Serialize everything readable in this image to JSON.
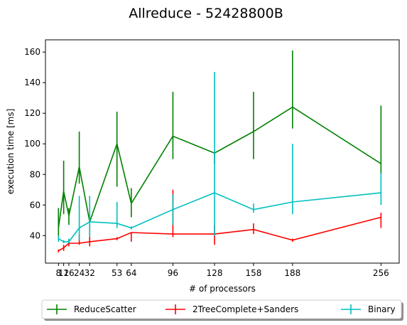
{
  "chart_data": {
    "type": "line",
    "title": "Allreduce - 52428800B",
    "xlabel": "# of processors",
    "ylabel": "execution time [ms]",
    "xticks": [
      8,
      12,
      16,
      24,
      32,
      53,
      64,
      96,
      128,
      158,
      188,
      256
    ],
    "xtick_labels": [
      "8",
      "12",
      "16",
      "24",
      "32",
      "53",
      "64",
      "96",
      "128",
      "158",
      "188",
      "256"
    ],
    "yticks": [
      40,
      60,
      80,
      100,
      120,
      140,
      160
    ],
    "ytick_labels": [
      "40",
      "60",
      "80",
      "100",
      "120",
      "140",
      "160"
    ],
    "xlim": [
      -2,
      270
    ],
    "ylim": [
      22,
      168
    ],
    "grid": false,
    "legend_position": "bottom-center",
    "series": [
      {
        "name": "ReduceScatter",
        "color": "#008000",
        "x": [
          8,
          12,
          16,
          24,
          32,
          53,
          64,
          96,
          128,
          158,
          188,
          256
        ],
        "y": [
          45,
          69,
          53,
          85,
          49,
          100,
          61,
          105,
          94,
          108,
          124,
          87
        ],
        "err_low": [
          37,
          54,
          47,
          74,
          46,
          72,
          52,
          90,
          87,
          90,
          110,
          80
        ],
        "err_high": [
          58,
          89,
          58,
          108,
          54,
          121,
          71,
          134,
          94,
          134,
          161,
          125
        ]
      },
      {
        "name": "2TreeComplete+Sanders",
        "color": "#ff0000",
        "x": [
          8,
          12,
          16,
          24,
          32,
          53,
          64,
          96,
          128,
          158,
          188,
          256
        ],
        "y": [
          30,
          32,
          35,
          35,
          36,
          38,
          42,
          41,
          41,
          44,
          37,
          52
        ],
        "err_low": [
          29,
          30,
          33,
          34,
          33,
          37,
          36,
          39,
          34,
          41,
          36,
          45
        ],
        "err_high": [
          31,
          34,
          37,
          41,
          47,
          39,
          42,
          70,
          47,
          48,
          38,
          55
        ]
      },
      {
        "name": "Binary",
        "color": "#00bfbf",
        "x": [
          8,
          12,
          16,
          24,
          32,
          53,
          64,
          96,
          128,
          158,
          188,
          256
        ],
        "y": [
          38,
          36,
          36,
          45,
          49,
          48,
          45,
          57,
          68,
          57,
          62,
          68
        ],
        "err_low": [
          36,
          35,
          35,
          37,
          39,
          45,
          44,
          47,
          40,
          55,
          54,
          60
        ],
        "err_high": [
          40,
          37,
          38,
          66,
          66,
          62,
          46,
          67,
          147,
          61,
          100,
          81
        ]
      }
    ]
  }
}
